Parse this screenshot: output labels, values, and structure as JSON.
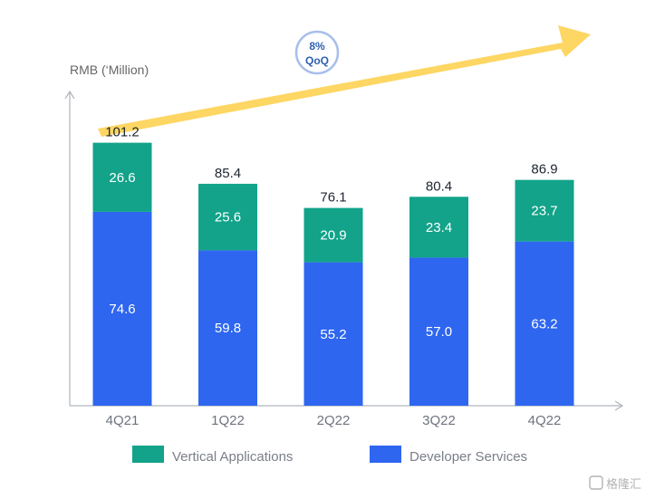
{
  "chart_data": {
    "type": "bar",
    "stacked": true,
    "ylabel": "RMB (‘Million)",
    "ylim": [
      0,
      115
    ],
    "categories": [
      "4Q21",
      "1Q22",
      "2Q22",
      "3Q22",
      "4Q22"
    ],
    "series": [
      {
        "name": "Developer Services",
        "color": "#2E66F0",
        "values": [
          74.6,
          59.8,
          55.2,
          57.0,
          63.2
        ]
      },
      {
        "name": "Vertical Applications",
        "color": "#12A38A",
        "values": [
          26.6,
          25.6,
          20.9,
          23.4,
          23.7
        ]
      }
    ],
    "totals": [
      "101.2",
      "85.4",
      "76.1",
      "80.4",
      "86.9"
    ],
    "developer_labels": [
      "74.6",
      "59.8",
      "55.2",
      "57.0",
      "63.2"
    ],
    "vertical_labels": [
      "26.6",
      "25.6",
      "20.9",
      "23.4",
      "23.7"
    ],
    "legend": [
      {
        "name": "Vertical Applications",
        "color": "#12A38A"
      },
      {
        "name": "Developer Services",
        "color": "#2E66F0"
      }
    ],
    "annotation": {
      "line1": "8%",
      "line2": "QoQ"
    },
    "trend_arrow_color": "#FDD663"
  },
  "watermark": "格隆汇"
}
